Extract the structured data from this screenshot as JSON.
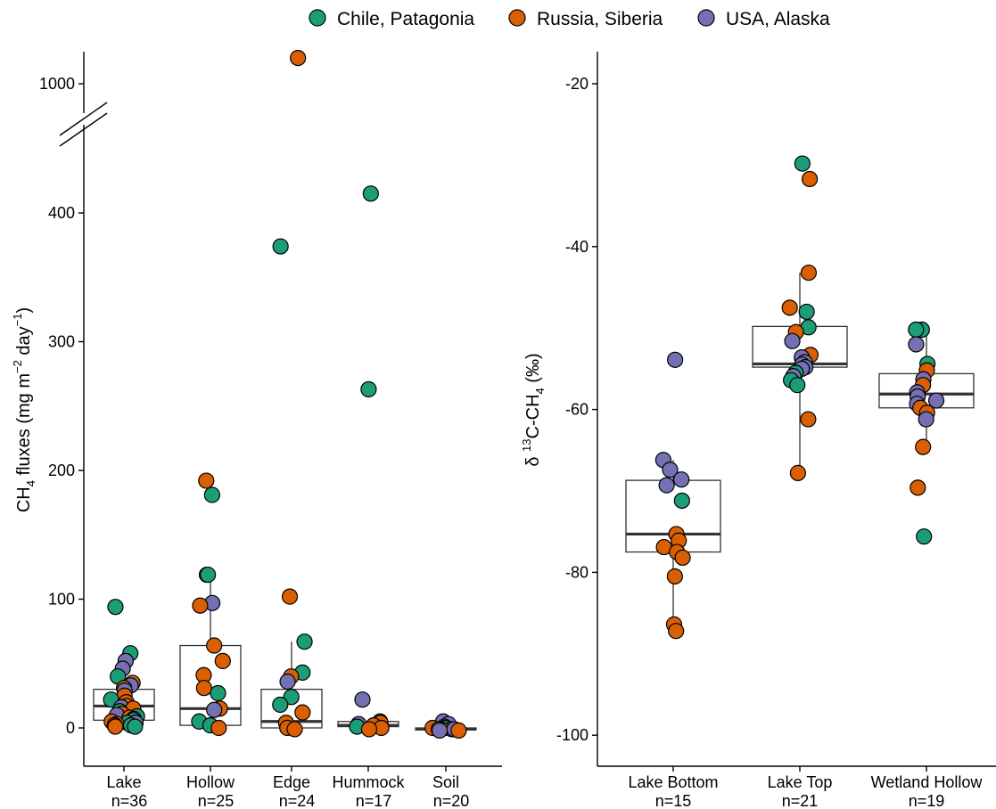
{
  "colors": {
    "Chile, Patagonia": "#1b9e77",
    "Russia, Siberia": "#d95f02",
    "USA, Alaska": "#7570b3"
  },
  "legend": {
    "position": "top",
    "entries": [
      {
        "label": "Chile, Patagonia",
        "color": "#1b9e77"
      },
      {
        "label": "Russia, Siberia",
        "color": "#d95f02"
      },
      {
        "label": "USA, Alaska",
        "color": "#7570b3"
      }
    ]
  },
  "chart_data": [
    {
      "type": "scatter",
      "ylabel": "CH4 fluxes (mg m-2 day-1)",
      "ylabel_parts": {
        "main": "CH",
        "sub": "4",
        "rest": " fluxes (mg m",
        "sup1": "−2",
        "mid": " day",
        "sup2": "−1",
        "end": ")"
      },
      "axis_break": {
        "from": 500,
        "to": 900
      },
      "yticks": [
        0,
        100,
        200,
        300,
        400,
        1000
      ],
      "ytick_labels": [
        "0",
        "100",
        "200",
        "300",
        "400",
        "1000"
      ],
      "categories": [
        {
          "name": "Lake",
          "n": "n=36",
          "box": {
            "q1": 6,
            "median": 17,
            "q3": 30,
            "whisker_low": 0,
            "whisker_high": 60
          }
        },
        {
          "name": "Hollow",
          "n": "n=25",
          "box": {
            "q1": 2,
            "median": 15,
            "q3": 64,
            "whisker_low": 0,
            "whisker_high": 120
          }
        },
        {
          "name": "Edge",
          "n": "n=24",
          "box": {
            "q1": 0,
            "median": 5,
            "q3": 30,
            "whisker_low": 0,
            "whisker_high": 67
          }
        },
        {
          "name": "Hummock",
          "n": "n=17",
          "box": {
            "q1": 1,
            "median": 2,
            "q3": 5,
            "whisker_low": 0,
            "whisker_high": 5
          }
        },
        {
          "name": "Soil",
          "n": "n=20",
          "box": {
            "q1": -1,
            "median": -1,
            "q3": 0,
            "whisker_low": -2,
            "whisker_high": 1
          }
        }
      ],
      "points": [
        {
          "cat": "Lake",
          "site": "Chile, Patagonia",
          "y": 94
        },
        {
          "cat": "Lake",
          "site": "Chile, Patagonia",
          "y": 58
        },
        {
          "cat": "Lake",
          "site": "USA, Alaska",
          "y": 52
        },
        {
          "cat": "Lake",
          "site": "USA, Alaska",
          "y": 46
        },
        {
          "cat": "Lake",
          "site": "Chile, Patagonia",
          "y": 40
        },
        {
          "cat": "Lake",
          "site": "Russia, Siberia",
          "y": 35
        },
        {
          "cat": "Lake",
          "site": "USA, Alaska",
          "y": 33
        },
        {
          "cat": "Lake",
          "site": "Russia, Siberia",
          "y": 31
        },
        {
          "cat": "Lake",
          "site": "USA, Alaska",
          "y": 29
        },
        {
          "cat": "Lake",
          "site": "Russia, Siberia",
          "y": 25
        },
        {
          "cat": "Lake",
          "site": "Chile, Patagonia",
          "y": 22
        },
        {
          "cat": "Lake",
          "site": "Russia, Siberia",
          "y": 20
        },
        {
          "cat": "Lake",
          "site": "Russia, Siberia",
          "y": 17
        },
        {
          "cat": "Lake",
          "site": "USA, Alaska",
          "y": 16
        },
        {
          "cat": "Lake",
          "site": "Russia, Siberia",
          "y": 15
        },
        {
          "cat": "Lake",
          "site": "Chile, Patagonia",
          "y": 13
        },
        {
          "cat": "Lake",
          "site": "Russia, Siberia",
          "y": 11
        },
        {
          "cat": "Lake",
          "site": "USA, Alaska",
          "y": 10
        },
        {
          "cat": "Lake",
          "site": "Chile, Patagonia",
          "y": 9
        },
        {
          "cat": "Lake",
          "site": "Russia, Siberia",
          "y": 8
        },
        {
          "cat": "Lake",
          "site": "USA, Alaska",
          "y": 7
        },
        {
          "cat": "Lake",
          "site": "Chile, Patagonia",
          "y": 6
        },
        {
          "cat": "Lake",
          "site": "Russia, Siberia",
          "y": 5
        },
        {
          "cat": "Lake",
          "site": "Chile, Patagonia",
          "y": 4
        },
        {
          "cat": "Lake",
          "site": "USA, Alaska",
          "y": 4
        },
        {
          "cat": "Lake",
          "site": "Russia, Siberia",
          "y": 3
        },
        {
          "cat": "Lake",
          "site": "Chile, Patagonia",
          "y": 2
        },
        {
          "cat": "Lake",
          "site": "Russia, Siberia",
          "y": 2
        },
        {
          "cat": "Lake",
          "site": "Chile, Patagonia",
          "y": 1
        },
        {
          "cat": "Lake",
          "site": "Russia, Siberia",
          "y": 1
        },
        {
          "cat": "Hollow",
          "site": "Russia, Siberia",
          "y": 192
        },
        {
          "cat": "Hollow",
          "site": "Chile, Patagonia",
          "y": 181
        },
        {
          "cat": "Hollow",
          "site": "Russia, Siberia",
          "y": 119
        },
        {
          "cat": "Hollow",
          "site": "Chile, Patagonia",
          "y": 119
        },
        {
          "cat": "Hollow",
          "site": "USA, Alaska",
          "y": 97
        },
        {
          "cat": "Hollow",
          "site": "Russia, Siberia",
          "y": 95
        },
        {
          "cat": "Hollow",
          "site": "Russia, Siberia",
          "y": 64
        },
        {
          "cat": "Hollow",
          "site": "Russia, Siberia",
          "y": 52
        },
        {
          "cat": "Hollow",
          "site": "Russia, Siberia",
          "y": 41
        },
        {
          "cat": "Hollow",
          "site": "Russia, Siberia",
          "y": 31
        },
        {
          "cat": "Hollow",
          "site": "Chile, Patagonia",
          "y": 27
        },
        {
          "cat": "Hollow",
          "site": "Russia, Siberia",
          "y": 15
        },
        {
          "cat": "Hollow",
          "site": "USA, Alaska",
          "y": 14
        },
        {
          "cat": "Hollow",
          "site": "Chile, Patagonia",
          "y": 5
        },
        {
          "cat": "Hollow",
          "site": "Chile, Patagonia",
          "y": 2
        },
        {
          "cat": "Hollow",
          "site": "Russia, Siberia",
          "y": 0
        },
        {
          "cat": "Edge",
          "site": "Russia, Siberia",
          "y": 1200
        },
        {
          "cat": "Edge",
          "site": "Chile, Patagonia",
          "y": 374
        },
        {
          "cat": "Edge",
          "site": "Russia, Siberia",
          "y": 102
        },
        {
          "cat": "Edge",
          "site": "Chile, Patagonia",
          "y": 67
        },
        {
          "cat": "Edge",
          "site": "Chile, Patagonia",
          "y": 43
        },
        {
          "cat": "Edge",
          "site": "Russia, Siberia",
          "y": 40
        },
        {
          "cat": "Edge",
          "site": "USA, Alaska",
          "y": 36
        },
        {
          "cat": "Edge",
          "site": "Chile, Patagonia",
          "y": 24
        },
        {
          "cat": "Edge",
          "site": "Chile, Patagonia",
          "y": 18
        },
        {
          "cat": "Edge",
          "site": "Russia, Siberia",
          "y": 12
        },
        {
          "cat": "Edge",
          "site": "Russia, Siberia",
          "y": 4
        },
        {
          "cat": "Edge",
          "site": "Russia, Siberia",
          "y": 0
        },
        {
          "cat": "Edge",
          "site": "Russia, Siberia",
          "y": -1
        },
        {
          "cat": "Hummock",
          "site": "Chile, Patagonia",
          "y": 415
        },
        {
          "cat": "Hummock",
          "site": "Chile, Patagonia",
          "y": 263
        },
        {
          "cat": "Hummock",
          "site": "USA, Alaska",
          "y": 22
        },
        {
          "cat": "Hummock",
          "site": "Chile, Patagonia",
          "y": 5
        },
        {
          "cat": "Hummock",
          "site": "Russia, Siberia",
          "y": 4
        },
        {
          "cat": "Hummock",
          "site": "USA, Alaska",
          "y": 3
        },
        {
          "cat": "Hummock",
          "site": "Russia, Siberia",
          "y": 2
        },
        {
          "cat": "Hummock",
          "site": "Chile, Patagonia",
          "y": 1
        },
        {
          "cat": "Hummock",
          "site": "Russia, Siberia",
          "y": 0
        },
        {
          "cat": "Hummock",
          "site": "Russia, Siberia",
          "y": -1
        },
        {
          "cat": "Soil",
          "site": "USA, Alaska",
          "y": 5
        },
        {
          "cat": "Soil",
          "site": "USA, Alaska",
          "y": 3
        },
        {
          "cat": "Soil",
          "site": "USA, Alaska",
          "y": 1
        },
        {
          "cat": "Soil",
          "site": "Chile, Patagonia",
          "y": 0
        },
        {
          "cat": "Soil",
          "site": "Russia, Siberia",
          "y": 0
        },
        {
          "cat": "Soil",
          "site": "USA, Alaska",
          "y": -1
        },
        {
          "cat": "Soil",
          "site": "Russia, Siberia",
          "y": -1
        },
        {
          "cat": "Soil",
          "site": "Chile, Patagonia",
          "y": -1
        },
        {
          "cat": "Soil",
          "site": "USA, Alaska",
          "y": -1
        },
        {
          "cat": "Soil",
          "site": "Russia, Siberia",
          "y": -2
        },
        {
          "cat": "Soil",
          "site": "USA, Alaska",
          "y": -2
        }
      ]
    },
    {
      "type": "scatter",
      "ylabel": "δ13C-CH4 (‰)",
      "ylabel_parts": {
        "delta": "δ ",
        "sup": "13",
        "mid": "C-CH",
        "sub": "4",
        "end": "  (‰)"
      },
      "ylim": [
        -104,
        -16
      ],
      "yticks": [
        -100,
        -80,
        -60,
        -40,
        -20
      ],
      "ytick_labels": [
        "-100",
        "-80",
        "-60",
        "-40",
        "-20"
      ],
      "categories": [
        {
          "name": "Lake Bottom",
          "n": "n=15",
          "box": {
            "q1": -77.5,
            "median": -75.3,
            "q3": -68.7,
            "whisker_low": -87.2,
            "whisker_high": -66.2
          }
        },
        {
          "name": "Lake Top",
          "n": "n=21",
          "box": {
            "q1": -54.8,
            "median": -54.4,
            "q3": -49.8,
            "whisker_low": -67.8,
            "whisker_high": -43.2
          }
        },
        {
          "name": "Wetland Hollow",
          "n": "n=19",
          "box": {
            "q1": -59.8,
            "median": -58.1,
            "q3": -55.6,
            "whisker_low": -64.6,
            "whisker_high": -50.2
          }
        }
      ],
      "points": [
        {
          "cat": "Lake Bottom",
          "site": "USA, Alaska",
          "y": -53.9
        },
        {
          "cat": "Lake Bottom",
          "site": "USA, Alaska",
          "y": -66.2
        },
        {
          "cat": "Lake Bottom",
          "site": "USA, Alaska",
          "y": -67.4
        },
        {
          "cat": "Lake Bottom",
          "site": "USA, Alaska",
          "y": -68.6
        },
        {
          "cat": "Lake Bottom",
          "site": "USA, Alaska",
          "y": -69.3
        },
        {
          "cat": "Lake Bottom",
          "site": "Chile, Patagonia",
          "y": -71.2
        },
        {
          "cat": "Lake Bottom",
          "site": "Russia, Siberia",
          "y": -75.3
        },
        {
          "cat": "Lake Bottom",
          "site": "Russia, Siberia",
          "y": -76.1
        },
        {
          "cat": "Lake Bottom",
          "site": "Russia, Siberia",
          "y": -76.9
        },
        {
          "cat": "Lake Bottom",
          "site": "Russia, Siberia",
          "y": -77.5
        },
        {
          "cat": "Lake Bottom",
          "site": "Russia, Siberia",
          "y": -78.2
        },
        {
          "cat": "Lake Bottom",
          "site": "Russia, Siberia",
          "y": -80.5
        },
        {
          "cat": "Lake Bottom",
          "site": "Russia, Siberia",
          "y": -86.4
        },
        {
          "cat": "Lake Bottom",
          "site": "Russia, Siberia",
          "y": -87.2
        },
        {
          "cat": "Lake Top",
          "site": "Chile, Patagonia",
          "y": -29.8
        },
        {
          "cat": "Lake Top",
          "site": "Russia, Siberia",
          "y": -31.7
        },
        {
          "cat": "Lake Top",
          "site": "Russia, Siberia",
          "y": -43.2
        },
        {
          "cat": "Lake Top",
          "site": "Russia, Siberia",
          "y": -47.5
        },
        {
          "cat": "Lake Top",
          "site": "Chile, Patagonia",
          "y": -48.0
        },
        {
          "cat": "Lake Top",
          "site": "Chile, Patagonia",
          "y": -49.9
        },
        {
          "cat": "Lake Top",
          "site": "Russia, Siberia",
          "y": -50.5
        },
        {
          "cat": "Lake Top",
          "site": "USA, Alaska",
          "y": -51.6
        },
        {
          "cat": "Lake Top",
          "site": "Russia, Siberia",
          "y": -53.3
        },
        {
          "cat": "Lake Top",
          "site": "USA, Alaska",
          "y": -53.6
        },
        {
          "cat": "Lake Top",
          "site": "USA, Alaska",
          "y": -54.2
        },
        {
          "cat": "Lake Top",
          "site": "USA, Alaska",
          "y": -54.5
        },
        {
          "cat": "Lake Top",
          "site": "USA, Alaska",
          "y": -54.8
        },
        {
          "cat": "Lake Top",
          "site": "USA, Alaska",
          "y": -55.0
        },
        {
          "cat": "Lake Top",
          "site": "Chile, Patagonia",
          "y": -55.5
        },
        {
          "cat": "Lake Top",
          "site": "USA, Alaska",
          "y": -55.9
        },
        {
          "cat": "Lake Top",
          "site": "Chile, Patagonia",
          "y": -56.4
        },
        {
          "cat": "Lake Top",
          "site": "Chile, Patagonia",
          "y": -57.0
        },
        {
          "cat": "Lake Top",
          "site": "Russia, Siberia",
          "y": -61.2
        },
        {
          "cat": "Lake Top",
          "site": "Russia, Siberia",
          "y": -67.8
        },
        {
          "cat": "Wetland Hollow",
          "site": "Chile, Patagonia",
          "y": -50.2
        },
        {
          "cat": "Wetland Hollow",
          "site": "Chile, Patagonia",
          "y": -50.2
        },
        {
          "cat": "Wetland Hollow",
          "site": "USA, Alaska",
          "y": -52.0
        },
        {
          "cat": "Wetland Hollow",
          "site": "Chile, Patagonia",
          "y": -54.4
        },
        {
          "cat": "Wetland Hollow",
          "site": "Russia, Siberia",
          "y": -55.2
        },
        {
          "cat": "Wetland Hollow",
          "site": "USA, Alaska",
          "y": -56.3
        },
        {
          "cat": "Wetland Hollow",
          "site": "Russia, Siberia",
          "y": -57.0
        },
        {
          "cat": "Wetland Hollow",
          "site": "USA, Alaska",
          "y": -57.9
        },
        {
          "cat": "Wetland Hollow",
          "site": "USA, Alaska",
          "y": -58.4
        },
        {
          "cat": "Wetland Hollow",
          "site": "USA, Alaska",
          "y": -58.9
        },
        {
          "cat": "Wetland Hollow",
          "site": "USA, Alaska",
          "y": -59.3
        },
        {
          "cat": "Wetland Hollow",
          "site": "Russia, Siberia",
          "y": -59.8
        },
        {
          "cat": "Wetland Hollow",
          "site": "Russia, Siberia",
          "y": -60.4
        },
        {
          "cat": "Wetland Hollow",
          "site": "USA, Alaska",
          "y": -61.2
        },
        {
          "cat": "Wetland Hollow",
          "site": "Russia, Siberia",
          "y": -64.6
        },
        {
          "cat": "Wetland Hollow",
          "site": "Russia, Siberia",
          "y": -69.6
        },
        {
          "cat": "Wetland Hollow",
          "site": "Chile, Patagonia",
          "y": -75.6
        }
      ]
    }
  ]
}
